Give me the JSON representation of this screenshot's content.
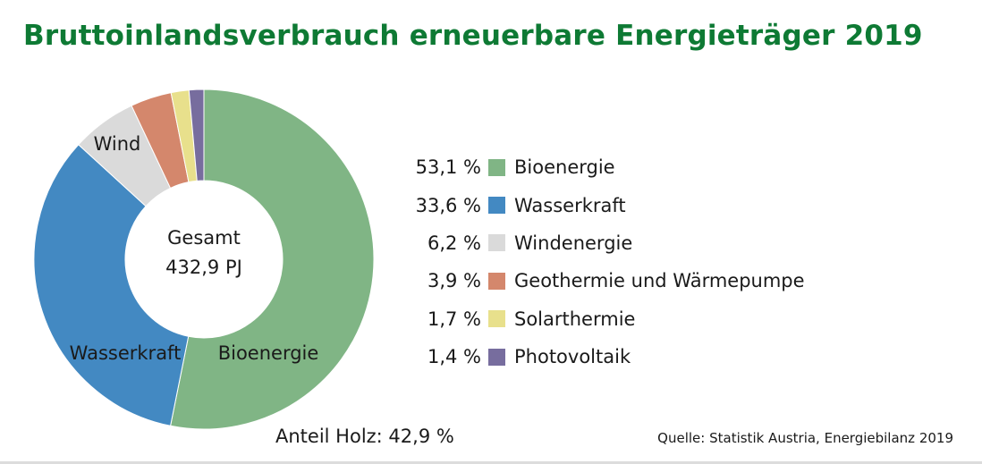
{
  "title": "Bruttoinlandsverbrauch erneuerbare Energieträger 2019",
  "chart_data": {
    "type": "pie",
    "title": "Bruttoinlandsverbrauch erneuerbare Energieträger 2019",
    "center_label": [
      "Gesamt",
      "432,9 PJ"
    ],
    "slices": [
      {
        "name": "Bioenergie",
        "value": 53.1,
        "value_label": "53,1 %",
        "color": "#80b585",
        "slice_label": "Bioenergie"
      },
      {
        "name": "Wasserkraft",
        "value": 33.6,
        "value_label": "33,6 %",
        "color": "#4389c2",
        "slice_label": "Wasserkraft"
      },
      {
        "name": "Windenergie",
        "value": 6.2,
        "value_label": "6,2 %",
        "color": "#dadada",
        "slice_label": "Wind"
      },
      {
        "name": "Geothermie und Wärmepumpe",
        "value": 3.9,
        "value_label": "3,9 %",
        "color": "#d4876c",
        "slice_label": ""
      },
      {
        "name": "Solarthermie",
        "value": 1.7,
        "value_label": "1,7 %",
        "color": "#e8e08c",
        "slice_label": ""
      },
      {
        "name": "Photovoltaik",
        "value": 1.4,
        "value_label": "1,4 %",
        "color": "#776d9e",
        "slice_label": ""
      }
    ],
    "legend_position": "right"
  },
  "footer": {
    "share": "Anteil Holz: 42,9 %",
    "source": "Quelle: Statistik Austria, Energiebilanz 2019"
  }
}
